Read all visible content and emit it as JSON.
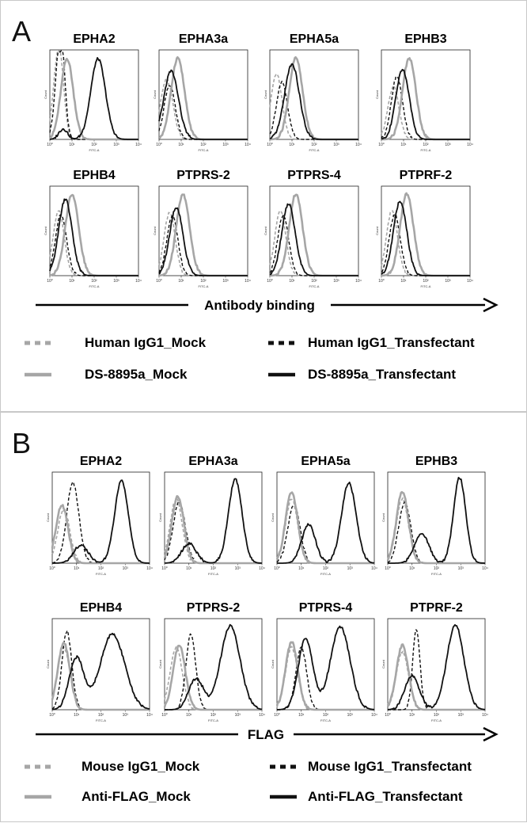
{
  "panels": [
    {
      "letter": "A",
      "axis_title": "Antibody binding",
      "legend": [
        {
          "label": "Human IgG1_Mock",
          "color": "#a6a6a6",
          "style": "dashed"
        },
        {
          "label": "Human IgG1_Transfectant",
          "color": "#111111",
          "style": "dashed"
        },
        {
          "label": "DS-8895a_Mock",
          "color": "#a6a6a6",
          "style": "solid"
        },
        {
          "label": "DS-8895a_Transfectant",
          "color": "#111111",
          "style": "solid"
        }
      ]
    },
    {
      "letter": "B",
      "axis_title": "FLAG",
      "legend": [
        {
          "label": "Mouse IgG1_Mock",
          "color": "#a6a6a6",
          "style": "dashed"
        },
        {
          "label": "Mouse IgG1_Transfectant",
          "color": "#111111",
          "style": "dashed"
        },
        {
          "label": "Anti-FLAG_Mock",
          "color": "#a6a6a6",
          "style": "solid"
        },
        {
          "label": "Anti-FLAG_Transfectant",
          "color": "#111111",
          "style": "solid"
        }
      ]
    }
  ],
  "chart_data": [
    {
      "type": "line",
      "panel": "A",
      "x_scale": "log",
      "xlim": [
        1,
        10000
      ],
      "xlabel": "FITC-A",
      "ylabel": "Count",
      "x_tick_labels": [
        "10⁰",
        "10¹",
        "10²",
        "10³",
        "10⁴"
      ],
      "legend_position": "bottom",
      "series_order": [
        "Human IgG1_Mock",
        "Human IgG1_Transfectant",
        "DS-8895a_Mock",
        "DS-8895a_Transfectant"
      ],
      "subplots": [
        {
          "title": "EPHA2",
          "series": [
            [
              [
                2,
                0.65,
                0.2
              ],
              [
                3.2,
                0.55,
                0.18
              ]
            ],
            [
              [
                2.6,
                0.72,
                0.2
              ],
              [
                3.4,
                0.6,
                0.16
              ]
            ],
            [
              [
                6,
                0.92,
                0.28
              ]
            ],
            [
              [
                4,
                0.12,
                0.2
              ],
              [
                150,
                0.92,
                0.33
              ]
            ]
          ]
        },
        {
          "title": "EPHA3a",
          "series": [
            [
              [
                2.2,
                0.68,
                0.28
              ]
            ],
            [
              [
                3.0,
                0.62,
                0.25
              ]
            ],
            [
              [
                7,
                0.93,
                0.3
              ]
            ],
            [
              [
                3.5,
                0.78,
                0.33
              ]
            ]
          ]
        },
        {
          "title": "EPHA5a",
          "series": [
            [
              [
                2.0,
                0.75,
                0.25
              ]
            ],
            [
              [
                3.5,
                0.65,
                0.25
              ]
            ],
            [
              [
                15,
                0.93,
                0.3
              ]
            ],
            [
              [
                10,
                0.86,
                0.33
              ]
            ]
          ]
        },
        {
          "title": "EPHB3",
          "series": [
            [
              [
                3.5,
                0.6,
                0.25
              ]
            ],
            [
              [
                5,
                0.72,
                0.25
              ]
            ],
            [
              [
                18,
                0.93,
                0.3
              ]
            ],
            [
              [
                9,
                0.8,
                0.3
              ]
            ]
          ]
        },
        {
          "title": "EPHB4",
          "series": [
            [
              [
                2.5,
                0.74,
                0.25
              ]
            ],
            [
              [
                3.2,
                0.7,
                0.25
              ]
            ],
            [
              [
                10,
                0.93,
                0.3
              ]
            ],
            [
              [
                5,
                0.87,
                0.3
              ]
            ]
          ]
        },
        {
          "title": "PTPRS-2",
          "series": [
            [
              [
                3,
                0.72,
                0.25
              ]
            ],
            [
              [
                4,
                0.68,
                0.25
              ]
            ],
            [
              [
                12,
                0.93,
                0.3
              ]
            ],
            [
              [
                6,
                0.78,
                0.3
              ]
            ]
          ]
        },
        {
          "title": "PTPRS-4",
          "series": [
            [
              [
                3,
                0.74,
                0.25
              ]
            ],
            [
              [
                4,
                0.68,
                0.25
              ]
            ],
            [
              [
                15,
                0.93,
                0.3
              ]
            ],
            [
              [
                7,
                0.82,
                0.3
              ]
            ]
          ]
        },
        {
          "title": "PTPRF-2",
          "series": [
            [
              [
                3,
                0.74,
                0.25
              ]
            ],
            [
              [
                4,
                0.7,
                0.25
              ]
            ],
            [
              [
                14,
                0.93,
                0.3
              ]
            ],
            [
              [
                7,
                0.85,
                0.3
              ]
            ]
          ]
        }
      ]
    },
    {
      "type": "line",
      "panel": "B",
      "x_scale": "log",
      "xlim": [
        1,
        10000
      ],
      "xlabel": "FITC-A",
      "ylabel": "Count",
      "x_tick_labels": [
        "10⁰",
        "10¹",
        "10²",
        "10³",
        "10⁴"
      ],
      "legend_position": "bottom",
      "series_order": [
        "Mouse IgG1_Mock",
        "Mouse IgG1_Transfectant",
        "Anti-FLAG_Mock",
        "Anti-FLAG_Transfectant"
      ],
      "subplots": [
        {
          "title": "EPHA2",
          "series": [
            [
              [
                3,
                0.6,
                0.25
              ]
            ],
            [
              [
                7,
                0.9,
                0.25
              ]
            ],
            [
              [
                2.5,
                0.65,
                0.25
              ]
            ],
            [
              [
                15,
                0.2,
                0.3
              ],
              [
                700,
                0.92,
                0.28
              ]
            ]
          ]
        },
        {
          "title": "EPHA3a",
          "series": [
            [
              [
                3,
                0.72,
                0.25
              ]
            ],
            [
              [
                4,
                0.68,
                0.25
              ]
            ],
            [
              [
                3.5,
                0.75,
                0.25
              ]
            ],
            [
              [
                10,
                0.22,
                0.3
              ],
              [
                800,
                0.94,
                0.28
              ]
            ]
          ]
        },
        {
          "title": "EPHA5a",
          "series": [
            [
              [
                4,
                0.72,
                0.25
              ]
            ],
            [
              [
                5,
                0.65,
                0.25
              ]
            ],
            [
              [
                4,
                0.8,
                0.25
              ]
            ],
            [
              [
                20,
                0.43,
                0.28
              ],
              [
                900,
                0.9,
                0.3
              ]
            ]
          ]
        },
        {
          "title": "EPHB3",
          "series": [
            [
              [
                4,
                0.72,
                0.25
              ]
            ],
            [
              [
                5,
                0.68,
                0.25
              ]
            ],
            [
              [
                4,
                0.8,
                0.25
              ]
            ],
            [
              [
                25,
                0.32,
                0.3
              ],
              [
                900,
                0.96,
                0.25
              ]
            ]
          ]
        },
        {
          "title": "EPHB4",
          "series": [
            [
              [
                3,
                0.7,
                0.25
              ]
            ],
            [
              [
                4,
                0.88,
                0.2
              ]
            ],
            [
              [
                3,
                0.75,
                0.25
              ]
            ],
            [
              [
                10,
                0.58,
                0.3
              ],
              [
                300,
                0.85,
                0.5
              ]
            ]
          ]
        },
        {
          "title": "PTPRS-2",
          "series": [
            [
              [
                3,
                0.7,
                0.25
              ]
            ],
            [
              [
                12,
                0.85,
                0.2
              ]
            ],
            [
              [
                4,
                0.72,
                0.25
              ]
            ],
            [
              [
                20,
                0.35,
                0.3
              ],
              [
                500,
                0.94,
                0.4
              ]
            ]
          ]
        },
        {
          "title": "PTPRS-4",
          "series": [
            [
              [
                4,
                0.7,
                0.25
              ]
            ],
            [
              [
                10,
                0.7,
                0.22
              ]
            ],
            [
              [
                4,
                0.76,
                0.25
              ]
            ],
            [
              [
                15,
                0.8,
                0.3
              ],
              [
                400,
                0.93,
                0.4
              ]
            ]
          ]
        },
        {
          "title": "PTPRF-2",
          "series": [
            [
              [
                4,
                0.65,
                0.25
              ]
            ],
            [
              [
                15,
                0.9,
                0.15
              ]
            ],
            [
              [
                4,
                0.72,
                0.25
              ]
            ],
            [
              [
                10,
                0.38,
                0.3
              ],
              [
                600,
                0.95,
                0.35
              ]
            ]
          ]
        }
      ]
    }
  ]
}
